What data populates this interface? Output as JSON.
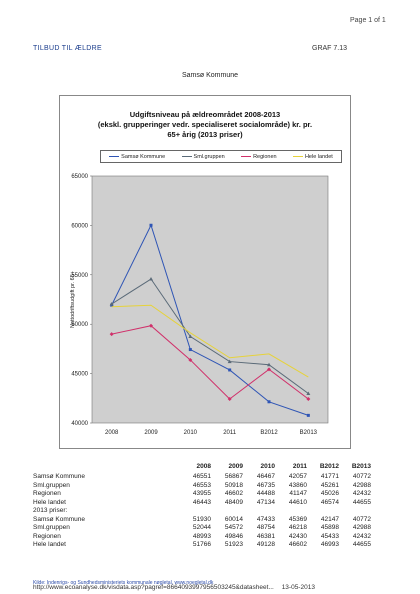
{
  "page": {
    "page_number": "Page 1 of 1",
    "header_left": "TILBUD TIL ÆLDRE",
    "header_right": "GRAF 7.13",
    "subtitle": "Samsø Kommune"
  },
  "chart_data": {
    "type": "line",
    "title_lines": [
      "Udgiftsniveau på ældreområdet 2008-2013",
      "(ekskl. grupperinger vedr. specialiseret socialområde) kr. pr.",
      "65+ årig (2013 priser)"
    ],
    "ylabel": "Nettodriftsudgift pr. 65+",
    "ylim": [
      40000,
      65000
    ],
    "y_ticks": [
      "40000",
      "45000",
      "50000",
      "55000",
      "60000",
      "65000"
    ],
    "categories": [
      "2008",
      "2009",
      "2010",
      "2011",
      "B2012",
      "B2013"
    ],
    "series": [
      {
        "name": "Samsø Kommune",
        "color": "#2f55b5",
        "marker": "square",
        "values": [
          51930,
          60014,
          47433,
          45369,
          42147,
          40772
        ]
      },
      {
        "name": "Sml.gruppen",
        "color": "#5a6a78",
        "marker": "triangle",
        "values": [
          52044,
          54572,
          48754,
          46218,
          45898,
          42988
        ]
      },
      {
        "name": "Regionen",
        "color": "#d0306a",
        "marker": "diamond",
        "values": [
          48993,
          49846,
          46381,
          42430,
          45433,
          42432
        ]
      },
      {
        "name": "Hele landet",
        "color": "#e6d23a",
        "marker": "none",
        "values": [
          51766,
          51923,
          49128,
          46602,
          46993,
          44655
        ]
      }
    ],
    "grid": false,
    "legend_position": "top"
  },
  "table": {
    "years": [
      "2008",
      "2009",
      "2010",
      "2011",
      "B2012",
      "B2013"
    ],
    "rows": [
      {
        "label": "Samsø Kommune",
        "values": [
          "46551",
          "56867",
          "46467",
          "42057",
          "41771",
          "40772"
        ]
      },
      {
        "label": "Sml.gruppen",
        "values": [
          "46553",
          "50918",
          "46735",
          "43860",
          "45261",
          "42988"
        ]
      },
      {
        "label": "Regionen",
        "values": [
          "43955",
          "46602",
          "44488",
          "41147",
          "45026",
          "42432"
        ]
      },
      {
        "label": "Hele landet",
        "values": [
          "46443",
          "48409",
          "47134",
          "44610",
          "46574",
          "44655"
        ]
      },
      {
        "label": "2013 priser:",
        "values": [
          "",
          "",
          "",
          "",
          "",
          ""
        ]
      },
      {
        "label": "Samsø Kommune",
        "values": [
          "51930",
          "60014",
          "47433",
          "45369",
          "42147",
          "40772"
        ]
      },
      {
        "label": "Sml.gruppen",
        "values": [
          "52044",
          "54572",
          "48754",
          "46218",
          "45898",
          "42988"
        ]
      },
      {
        "label": "Regionen",
        "values": [
          "48993",
          "49846",
          "46381",
          "42430",
          "45433",
          "42432"
        ]
      },
      {
        "label": "Hele landet",
        "values": [
          "51766",
          "51923",
          "49128",
          "46602",
          "46993",
          "44655"
        ]
      }
    ],
    "note": "Kilde: Indenrigs- og Sundhedsministeriets kommunale nøgletal, www.noegletal.dk"
  },
  "footer": {
    "url": "http://www.ecoanalyse.dk/visdata.asp?pagref=8664093997956503245&datasheet...",
    "date": "13-05-2013"
  }
}
